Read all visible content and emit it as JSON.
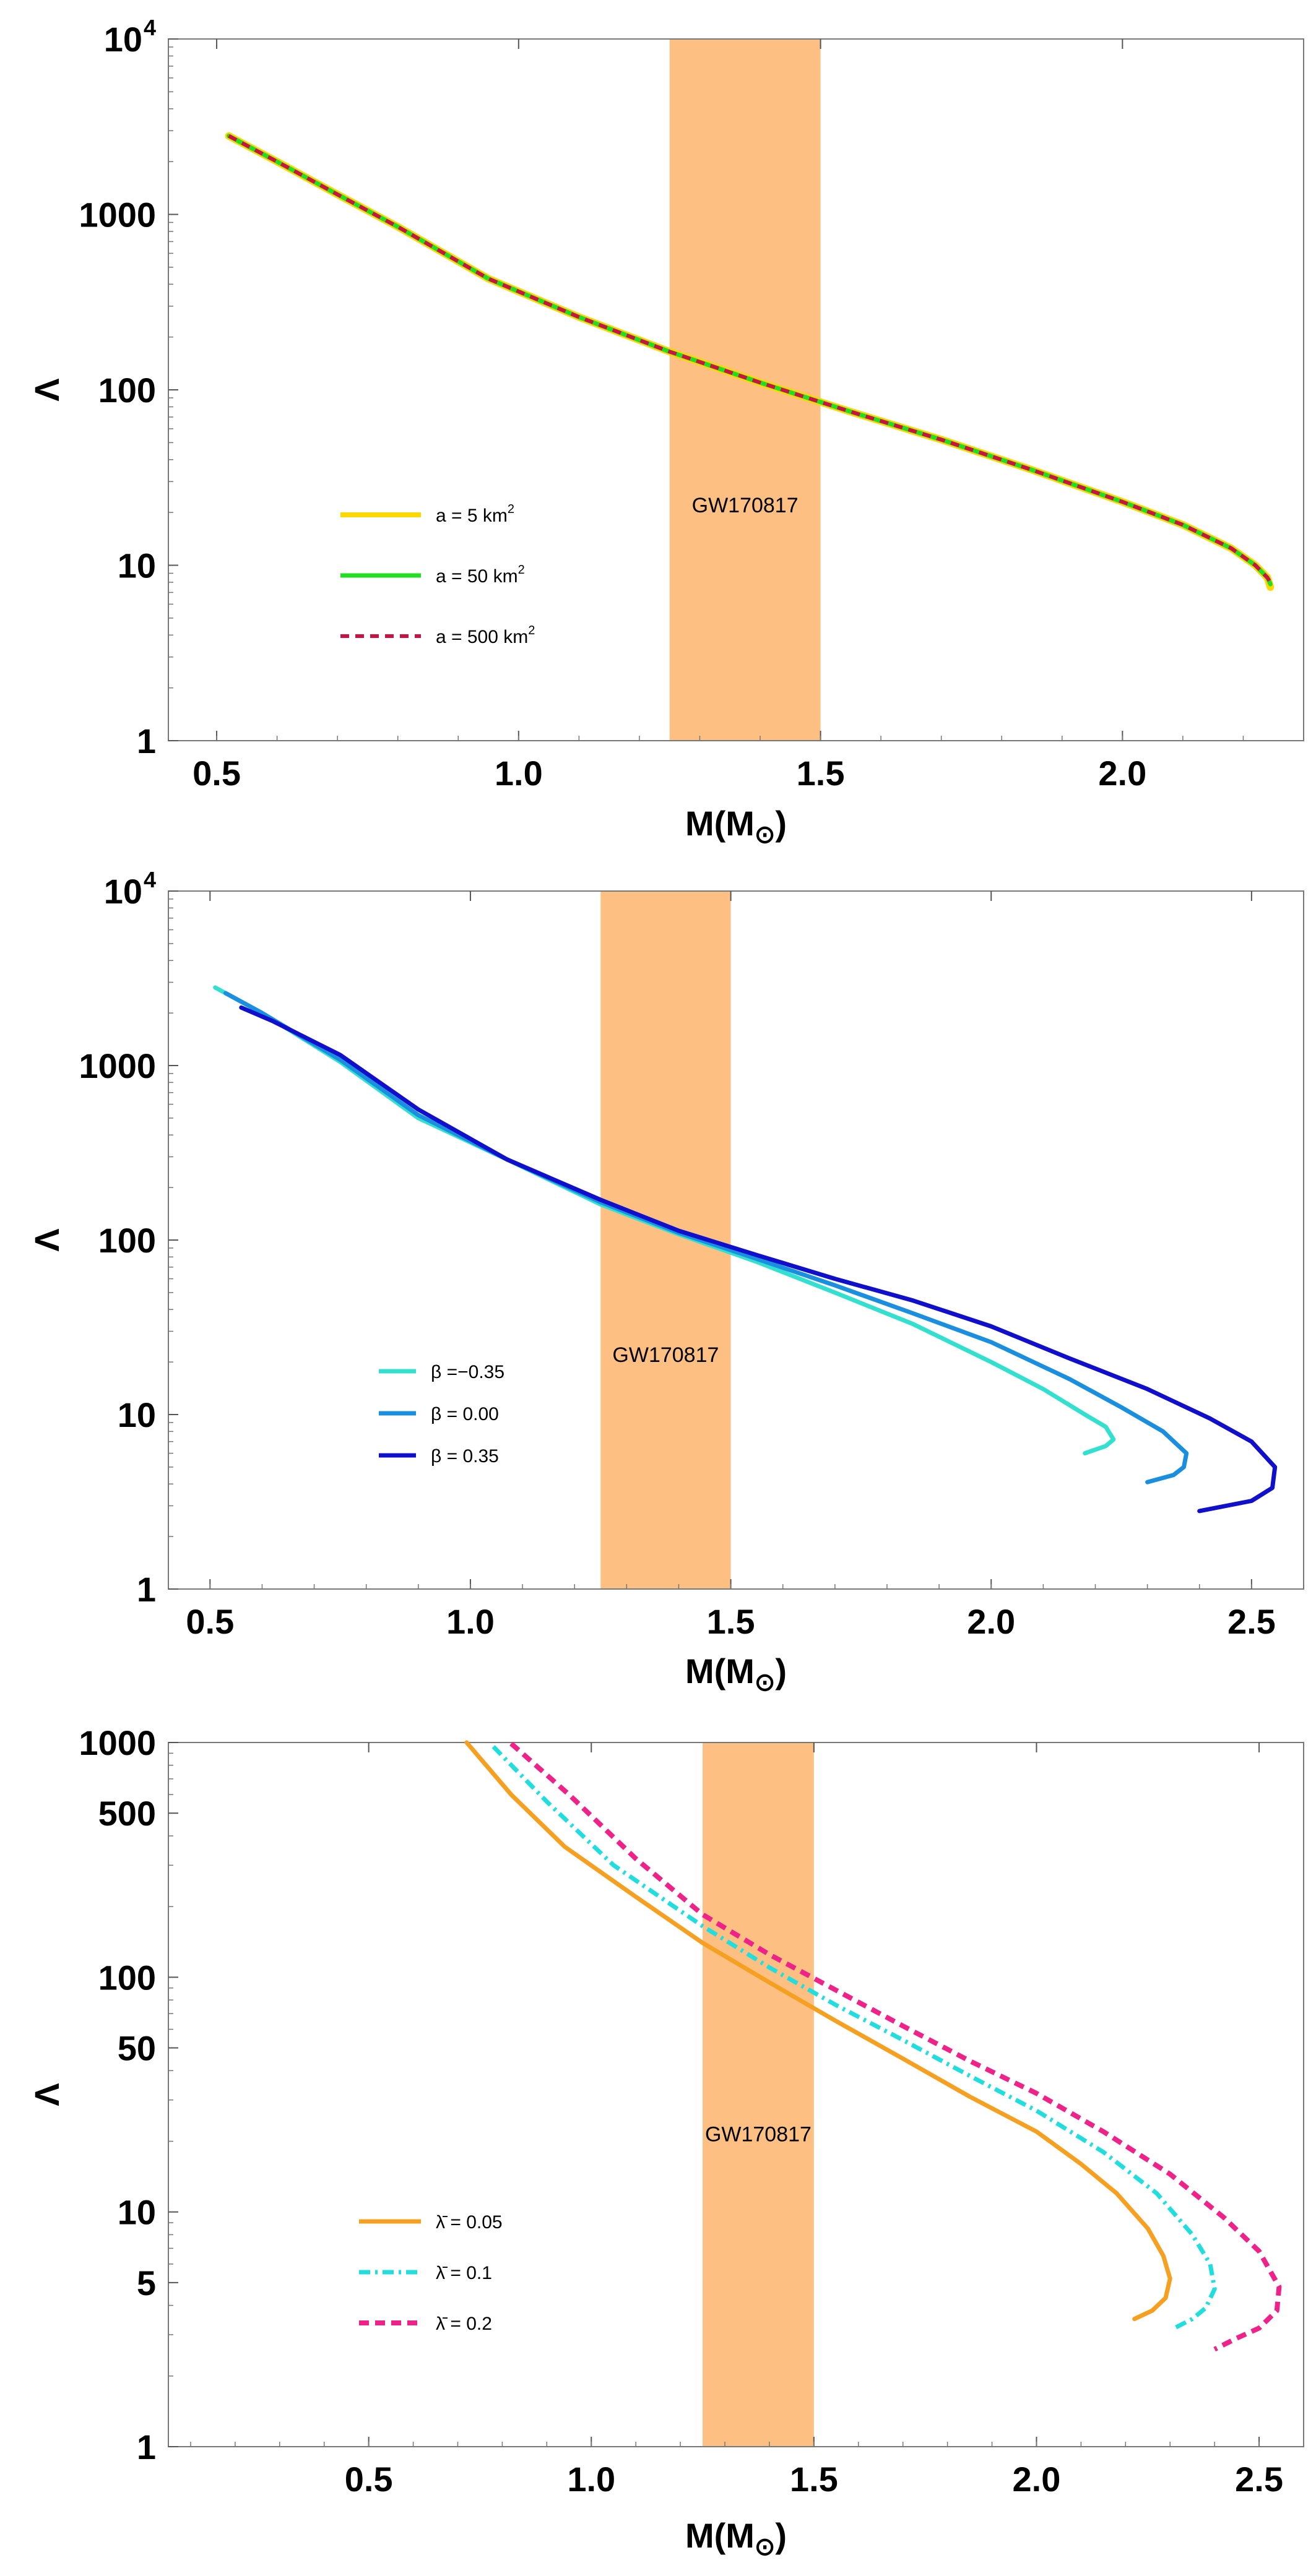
{
  "chart_data": [
    {
      "type": "line",
      "xlabel": "M(M",
      "xlabel_sub": "⊙",
      "ylabel": "Λ",
      "yscale": "log",
      "xlim": [
        0.42,
        2.3
      ],
      "ylim": [
        1,
        10000
      ],
      "x_ticks": [
        0.5,
        1.0,
        1.5,
        2.0
      ],
      "x_tick_labels": [
        "0.5",
        "1.0",
        "1.5",
        "2.0"
      ],
      "y_ticks": [
        {
          "value": 1,
          "label": "1",
          "sup": ""
        },
        {
          "value": 10,
          "label": "10",
          "sup": ""
        },
        {
          "value": 100,
          "label": "100",
          "sup": ""
        },
        {
          "value": 1000,
          "label": "1000",
          "sup": ""
        },
        {
          "value": 10000,
          "label": "10",
          "sup": "4"
        }
      ],
      "band": {
        "x0": 1.25,
        "x1": 1.5,
        "label": "GW170817",
        "label_y": 20,
        "color": "#fdbf82"
      },
      "series": [
        {
          "name": "a = 5 km",
          "sup": "2",
          "color": "#ffd700",
          "dash": "",
          "width": 12,
          "x": [
            0.52,
            0.6,
            0.7,
            0.8,
            0.95,
            1.1,
            1.25,
            1.4,
            1.55,
            1.7,
            1.85,
            2.0,
            2.1,
            2.18,
            2.22,
            2.24,
            2.245
          ],
          "y": [
            2800,
            2000,
            1300,
            850,
            430,
            260,
            165,
            110,
            75,
            52,
            35,
            23,
            17,
            12.5,
            10,
            8.5,
            7.5
          ]
        },
        {
          "name": "a = 50 km",
          "sup": "2",
          "color": "#22dd22",
          "dash": "",
          "width": 7,
          "x": [
            0.52,
            0.6,
            0.7,
            0.8,
            0.95,
            1.1,
            1.25,
            1.4,
            1.55,
            1.7,
            1.85,
            2.0,
            2.1,
            2.18,
            2.22,
            2.24,
            2.245
          ],
          "y": [
            2800,
            2000,
            1300,
            850,
            430,
            260,
            165,
            110,
            75,
            52,
            35,
            23,
            17,
            12.5,
            10,
            8.5,
            7.8
          ]
        },
        {
          "name": "a = 500 km",
          "sup": "2",
          "color": "#cc1144",
          "dash": "14 10",
          "width": 6,
          "x": [
            0.52,
            0.6,
            0.7,
            0.8,
            0.95,
            1.1,
            1.25,
            1.4,
            1.55,
            1.7,
            1.85,
            2.0,
            2.1,
            2.18,
            2.22,
            2.24,
            2.245
          ],
          "y": [
            2800,
            2000,
            1300,
            850,
            430,
            260,
            165,
            110,
            75,
            52,
            35,
            23,
            17,
            12.5,
            10,
            8.5,
            8.0
          ]
        }
      ],
      "legend_position": "left"
    },
    {
      "type": "line",
      "xlabel": "M(M",
      "xlabel_sub": "⊙",
      "ylabel": "Λ",
      "yscale": "log",
      "xlim": [
        0.42,
        2.6
      ],
      "ylim": [
        1,
        10000
      ],
      "x_ticks": [
        0.5,
        1.0,
        1.5,
        2.0,
        2.5
      ],
      "x_tick_labels": [
        "0.5",
        "1.0",
        "1.5",
        "2.0",
        "2.5"
      ],
      "y_ticks": [
        {
          "value": 1,
          "label": "1",
          "sup": ""
        },
        {
          "value": 10,
          "label": "10",
          "sup": ""
        },
        {
          "value": 100,
          "label": "100",
          "sup": ""
        },
        {
          "value": 1000,
          "label": "1000",
          "sup": ""
        },
        {
          "value": 10000,
          "label": "10",
          "sup": "4"
        }
      ],
      "band": {
        "x0": 1.25,
        "x1": 1.5,
        "label": "GW170817",
        "label_y": 20,
        "color": "#fdbf82"
      },
      "series": [
        {
          "name": "β =−0.35",
          "sup": "",
          "color": "#33e0d0",
          "dash": "",
          "width": 7,
          "x": [
            0.51,
            0.6,
            0.75,
            0.9,
            1.07,
            1.25,
            1.4,
            1.55,
            1.7,
            1.85,
            2.0,
            2.1,
            2.18,
            2.22,
            2.235,
            2.22,
            2.18
          ],
          "y": [
            2800,
            2000,
            1050,
            500,
            290,
            160,
            108,
            75,
            50,
            33,
            20,
            14,
            10,
            8.5,
            7.2,
            6.6,
            6.0
          ]
        },
        {
          "name": "β = 0.00",
          "sup": "",
          "color": "#1a8fe0",
          "dash": "",
          "width": 7,
          "x": [
            0.53,
            0.6,
            0.75,
            0.9,
            1.07,
            1.25,
            1.4,
            1.55,
            1.7,
            1.85,
            2.0,
            2.15,
            2.25,
            2.33,
            2.375,
            2.37,
            2.35,
            2.3
          ],
          "y": [
            2600,
            2000,
            1080,
            520,
            290,
            165,
            110,
            78,
            55,
            38,
            26,
            16,
            11,
            8,
            6.0,
            5.0,
            4.5,
            4.1
          ]
        },
        {
          "name": "β = 0.35",
          "sup": "",
          "color": "#1010cc",
          "dash": "",
          "width": 7,
          "x": [
            0.56,
            0.62,
            0.75,
            0.9,
            1.07,
            1.25,
            1.4,
            1.55,
            1.7,
            1.85,
            2.0,
            2.15,
            2.3,
            2.42,
            2.5,
            2.545,
            2.54,
            2.5,
            2.4
          ],
          "y": [
            2150,
            1800,
            1150,
            560,
            290,
            170,
            113,
            82,
            60,
            45,
            32,
            21,
            14,
            9.5,
            7,
            5.0,
            3.8,
            3.2,
            2.8
          ]
        }
      ],
      "legend_position": "left"
    },
    {
      "type": "line",
      "xlabel": "M(M",
      "xlabel_sub": "⊙",
      "ylabel": "Λ",
      "yscale": "log",
      "xlim": [
        0.05,
        2.6
      ],
      "ylim": [
        1,
        1000
      ],
      "x_ticks": [
        0.5,
        1.0,
        1.5,
        2.0,
        2.5
      ],
      "x_tick_labels": [
        "0.5",
        "1.0",
        "1.5",
        "2.0",
        "2.5"
      ],
      "y_ticks": [
        {
          "value": 1,
          "label": "1",
          "sup": ""
        },
        {
          "value": 5,
          "label": "5",
          "sup": ""
        },
        {
          "value": 10,
          "label": "10",
          "sup": ""
        },
        {
          "value": 50,
          "label": "50",
          "sup": ""
        },
        {
          "value": 100,
          "label": "100",
          "sup": ""
        },
        {
          "value": 500,
          "label": "500",
          "sup": ""
        },
        {
          "value": 1000,
          "label": "1000",
          "sup": ""
        }
      ],
      "band": {
        "x0": 1.25,
        "x1": 1.5,
        "label": "GW170817",
        "label_y": 20,
        "color": "#fdbf82"
      },
      "series": [
        {
          "name": "λ̄ = 0.05",
          "sup": "",
          "color": "#f5a020",
          "dash": "",
          "width": 7,
          "x": [
            0.72,
            0.82,
            0.94,
            1.1,
            1.25,
            1.4,
            1.55,
            1.7,
            1.85,
            2.0,
            2.1,
            2.18,
            2.25,
            2.285,
            2.3,
            2.29,
            2.26,
            2.22
          ],
          "y": [
            1000,
            600,
            360,
            220,
            140,
            95,
            65,
            45,
            31,
            22,
            16,
            12,
            8.5,
            6.5,
            5.2,
            4.3,
            3.8,
            3.5
          ]
        },
        {
          "name": "λ̄ = 0.1",
          "sup": "",
          "color": "#22dddd",
          "dash": "18 8 4 8",
          "width": 7,
          "x": [
            0.78,
            0.9,
            1.05,
            1.25,
            1.4,
            1.55,
            1.7,
            1.85,
            2.0,
            2.15,
            2.27,
            2.35,
            2.39,
            2.4,
            2.38,
            2.35,
            2.31
          ],
          "y": [
            960,
            560,
            300,
            165,
            110,
            76,
            54,
            38,
            27,
            18,
            12,
            8,
            6,
            4.7,
            3.9,
            3.5,
            3.2
          ]
        },
        {
          "name": "λ̄ = 0.2",
          "sup": "",
          "color": "#ee2288",
          "dash": "16 10",
          "width": 8,
          "x": [
            0.82,
            0.95,
            1.1,
            1.25,
            1.4,
            1.55,
            1.7,
            1.85,
            2.0,
            2.15,
            2.3,
            2.42,
            2.5,
            2.545,
            2.54,
            2.5,
            2.45,
            2.4
          ],
          "y": [
            990,
            600,
            320,
            185,
            125,
            88,
            62,
            44,
            32,
            22,
            14.5,
            9.5,
            6.8,
            4.8,
            3.8,
            3.2,
            2.9,
            2.6
          ]
        }
      ],
      "legend_position": "left"
    }
  ]
}
